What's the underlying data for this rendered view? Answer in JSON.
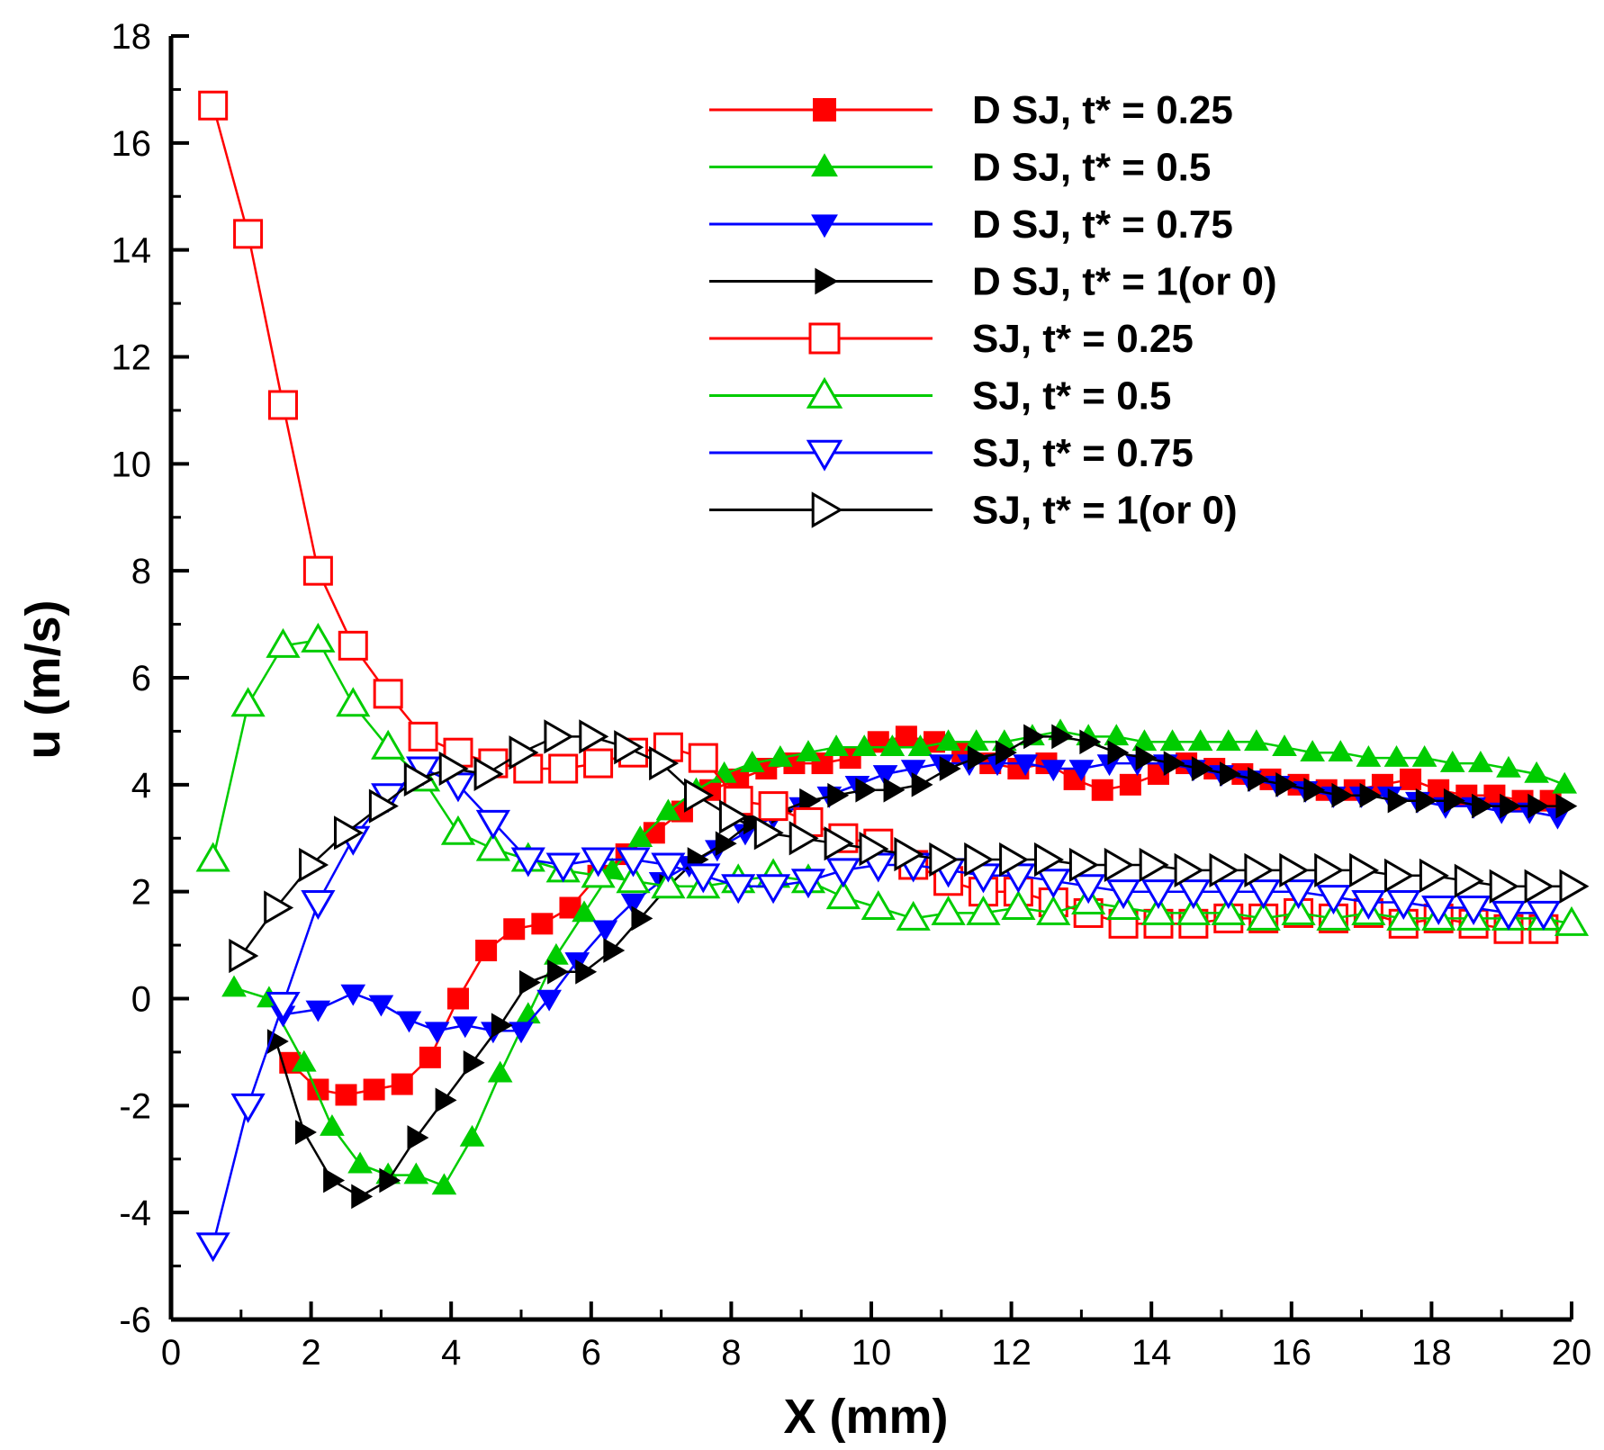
{
  "chart_data": {
    "type": "line",
    "title": "",
    "xlabel": "X (mm)",
    "ylabel": "u (m/s)",
    "xlim": [
      0,
      20
    ],
    "ylim": [
      -6,
      18
    ],
    "xticks": [
      0,
      2,
      4,
      6,
      8,
      10,
      12,
      14,
      16,
      18,
      20
    ],
    "yticks": [
      -6,
      -4,
      -2,
      0,
      2,
      4,
      6,
      8,
      10,
      12,
      14,
      16,
      18
    ],
    "grid": false,
    "legend_position": "top-right",
    "series": [
      {
        "name": "D SJ, t* = 0.25",
        "color": "#ff0000",
        "marker": "square",
        "filled": true,
        "x": [
          1.7,
          2.1,
          2.5,
          2.9,
          3.3,
          3.7,
          4.1,
          4.5,
          4.9,
          5.3,
          5.7,
          6.1,
          6.5,
          6.9,
          7.3,
          7.7,
          8.1,
          8.5,
          8.9,
          9.3,
          9.7,
          10.1,
          10.5,
          10.9,
          11.3,
          11.7,
          12.1,
          12.5,
          12.9,
          13.3,
          13.7,
          14.1,
          14.5,
          14.9,
          15.3,
          15.7,
          16.1,
          16.5,
          16.9,
          17.3,
          17.7,
          18.1,
          18.5,
          18.9,
          19.3,
          19.7
        ],
        "y": [
          -1.2,
          -1.7,
          -1.8,
          -1.7,
          -1.6,
          -1.1,
          0.0,
          0.9,
          1.3,
          1.4,
          1.7,
          2.3,
          2.7,
          3.1,
          3.5,
          3.9,
          4.1,
          4.3,
          4.4,
          4.4,
          4.5,
          4.8,
          4.9,
          4.8,
          4.6,
          4.4,
          4.3,
          4.4,
          4.1,
          3.9,
          4.0,
          4.2,
          4.4,
          4.3,
          4.2,
          4.1,
          4.0,
          3.9,
          3.9,
          4.0,
          4.1,
          3.9,
          3.8,
          3.8,
          3.7,
          3.7
        ]
      },
      {
        "name": "D SJ, t* = 0.5",
        "color": "#00cc00",
        "marker": "triangle-up",
        "filled": true,
        "x": [
          0.9,
          1.4,
          1.9,
          2.3,
          2.7,
          3.1,
          3.5,
          3.9,
          4.3,
          4.7,
          5.1,
          5.5,
          5.9,
          6.3,
          6.7,
          7.1,
          7.5,
          7.9,
          8.3,
          8.7,
          9.1,
          9.5,
          9.9,
          10.3,
          10.7,
          11.1,
          11.5,
          11.9,
          12.3,
          12.7,
          13.1,
          13.5,
          13.9,
          14.3,
          14.7,
          15.1,
          15.5,
          15.9,
          16.3,
          16.7,
          17.1,
          17.5,
          17.9,
          18.3,
          18.7,
          19.1,
          19.5,
          19.9
        ],
        "y": [
          0.2,
          0.0,
          -1.2,
          -2.4,
          -3.1,
          -3.3,
          -3.3,
          -3.5,
          -2.6,
          -1.4,
          -0.3,
          0.8,
          1.6,
          2.4,
          3.0,
          3.5,
          3.9,
          4.2,
          4.4,
          4.5,
          4.6,
          4.7,
          4.7,
          4.7,
          4.7,
          4.8,
          4.8,
          4.8,
          4.9,
          5.0,
          4.9,
          4.9,
          4.8,
          4.8,
          4.8,
          4.8,
          4.8,
          4.7,
          4.6,
          4.6,
          4.5,
          4.5,
          4.5,
          4.4,
          4.4,
          4.3,
          4.2,
          4.0
        ]
      },
      {
        "name": "D SJ, t* = 0.75",
        "color": "#0000ff",
        "marker": "triangle-down",
        "filled": true,
        "x": [
          1.6,
          2.1,
          2.6,
          3.0,
          3.4,
          3.8,
          4.2,
          4.6,
          5.0,
          5.4,
          5.8,
          6.2,
          6.6,
          7.0,
          7.4,
          7.8,
          8.2,
          8.6,
          9.0,
          9.4,
          9.8,
          10.2,
          10.6,
          11.0,
          11.4,
          11.8,
          12.2,
          12.6,
          13.0,
          13.4,
          13.8,
          14.2,
          14.6,
          15.0,
          15.4,
          15.8,
          16.2,
          16.6,
          17.0,
          17.4,
          17.8,
          18.2,
          18.6,
          19.0,
          19.4,
          19.8
        ],
        "y": [
          -0.3,
          -0.2,
          0.1,
          -0.1,
          -0.4,
          -0.6,
          -0.5,
          -0.6,
          -0.6,
          0.0,
          0.7,
          1.3,
          1.8,
          2.2,
          2.5,
          2.8,
          3.1,
          3.4,
          3.6,
          3.8,
          4.0,
          4.2,
          4.3,
          4.4,
          4.4,
          4.4,
          4.4,
          4.3,
          4.3,
          4.4,
          4.4,
          4.4,
          4.3,
          4.2,
          4.1,
          4.0,
          3.9,
          3.8,
          3.8,
          3.8,
          3.7,
          3.6,
          3.6,
          3.5,
          3.5,
          3.4
        ]
      },
      {
        "name": "D SJ, t* = 1(or 0)",
        "color": "#000000",
        "marker": "triangle-right",
        "filled": true,
        "x": [
          1.5,
          1.9,
          2.3,
          2.7,
          3.1,
          3.5,
          3.9,
          4.3,
          4.7,
          5.1,
          5.5,
          5.9,
          6.3,
          6.7,
          7.1,
          7.5,
          7.9,
          8.3,
          8.7,
          9.1,
          9.5,
          9.9,
          10.3,
          10.7,
          11.1,
          11.5,
          11.9,
          12.3,
          12.7,
          13.1,
          13.5,
          13.9,
          14.3,
          14.7,
          15.1,
          15.5,
          15.9,
          16.3,
          16.7,
          17.1,
          17.5,
          17.9,
          18.3,
          18.7,
          19.1,
          19.5,
          19.9
        ],
        "y": [
          -0.8,
          -2.5,
          -3.4,
          -3.7,
          -3.4,
          -2.6,
          -1.9,
          -1.2,
          -0.5,
          0.3,
          0.5,
          0.5,
          0.9,
          1.5,
          2.1,
          2.6,
          2.9,
          3.3,
          3.5,
          3.7,
          3.8,
          3.9,
          3.9,
          4.0,
          4.3,
          4.5,
          4.6,
          4.9,
          4.9,
          4.8,
          4.6,
          4.5,
          4.4,
          4.3,
          4.2,
          4.1,
          4.0,
          3.9,
          3.8,
          3.8,
          3.7,
          3.7,
          3.7,
          3.6,
          3.6,
          3.6,
          3.6
        ]
      },
      {
        "name": "SJ, t* = 0.25",
        "color": "#ff0000",
        "marker": "square",
        "filled": false,
        "x": [
          0.6,
          1.1,
          1.6,
          2.1,
          2.6,
          3.1,
          3.6,
          4.1,
          4.6,
          5.1,
          5.6,
          6.1,
          6.6,
          7.1,
          7.6,
          8.1,
          8.6,
          9.1,
          9.6,
          10.1,
          10.6,
          11.1,
          11.6,
          12.1,
          12.6,
          13.1,
          13.6,
          14.1,
          14.6,
          15.1,
          15.6,
          16.1,
          16.6,
          17.1,
          17.6,
          18.1,
          18.6,
          19.1,
          19.6
        ],
        "y": [
          16.7,
          14.3,
          11.1,
          8.0,
          6.6,
          5.7,
          4.9,
          4.6,
          4.4,
          4.3,
          4.3,
          4.4,
          4.6,
          4.7,
          4.5,
          3.7,
          3.6,
          3.3,
          3.0,
          2.9,
          2.5,
          2.2,
          2.0,
          2.0,
          1.8,
          1.6,
          1.4,
          1.4,
          1.4,
          1.5,
          1.5,
          1.6,
          1.5,
          1.6,
          1.4,
          1.5,
          1.4,
          1.3,
          1.3
        ]
      },
      {
        "name": "SJ, t* = 0.5",
        "color": "#00cc00",
        "marker": "triangle-up",
        "filled": false,
        "x": [
          0.6,
          1.1,
          1.6,
          2.1,
          2.6,
          3.1,
          3.6,
          4.1,
          4.6,
          5.1,
          5.6,
          6.1,
          6.6,
          7.1,
          7.6,
          8.1,
          8.6,
          9.1,
          9.6,
          10.1,
          10.6,
          11.1,
          11.6,
          12.1,
          12.6,
          13.1,
          13.6,
          14.1,
          14.6,
          15.1,
          15.6,
          16.1,
          16.6,
          17.1,
          17.6,
          18.1,
          18.6,
          19.1,
          19.6,
          20.0
        ],
        "y": [
          2.6,
          5.5,
          6.6,
          6.7,
          5.5,
          4.7,
          4.1,
          3.1,
          2.8,
          2.6,
          2.4,
          2.3,
          2.2,
          2.1,
          2.1,
          2.2,
          2.3,
          2.2,
          1.9,
          1.7,
          1.5,
          1.6,
          1.6,
          1.7,
          1.6,
          1.8,
          1.7,
          1.6,
          1.6,
          1.6,
          1.5,
          1.6,
          1.5,
          1.6,
          1.5,
          1.5,
          1.5,
          1.5,
          1.5,
          1.4
        ]
      },
      {
        "name": "SJ, t* = 0.75",
        "color": "#0000ff",
        "marker": "triangle-down",
        "filled": false,
        "x": [
          0.6,
          1.1,
          1.6,
          2.1,
          2.6,
          3.1,
          3.6,
          4.1,
          4.6,
          5.1,
          5.6,
          6.1,
          6.6,
          7.1,
          7.6,
          8.1,
          8.6,
          9.1,
          9.6,
          10.1,
          10.6,
          11.1,
          11.6,
          12.1,
          12.6,
          13.1,
          13.6,
          14.1,
          14.6,
          15.1,
          15.6,
          16.1,
          16.6,
          17.1,
          17.6,
          18.1,
          18.6,
          19.1,
          19.6
        ],
        "y": [
          -4.6,
          -2.0,
          -0.1,
          1.8,
          3.0,
          3.8,
          4.3,
          4.0,
          3.3,
          2.6,
          2.5,
          2.6,
          2.6,
          2.5,
          2.3,
          2.1,
          2.1,
          2.2,
          2.4,
          2.5,
          2.5,
          2.4,
          2.3,
          2.3,
          2.2,
          2.1,
          2.0,
          2.0,
          2.0,
          2.0,
          2.0,
          2.0,
          1.9,
          1.8,
          1.8,
          1.7,
          1.7,
          1.6,
          1.6
        ]
      },
      {
        "name": "SJ, t* = 1(or 0)",
        "color": "#000000",
        "marker": "triangle-right",
        "filled": false,
        "x": [
          1.0,
          1.5,
          2.0,
          2.5,
          3.0,
          3.5,
          4.0,
          4.5,
          5.0,
          5.5,
          6.0,
          6.5,
          7.0,
          7.5,
          8.0,
          8.5,
          9.0,
          9.5,
          10.0,
          10.5,
          11.0,
          11.5,
          12.0,
          12.5,
          13.0,
          13.5,
          14.0,
          14.5,
          15.0,
          15.5,
          16.0,
          16.5,
          17.0,
          17.5,
          18.0,
          18.5,
          19.0,
          19.5,
          20.0
        ],
        "y": [
          0.8,
          1.7,
          2.5,
          3.1,
          3.6,
          4.1,
          4.3,
          4.2,
          4.6,
          4.9,
          4.9,
          4.7,
          4.4,
          3.8,
          3.4,
          3.1,
          3.0,
          2.9,
          2.8,
          2.7,
          2.6,
          2.6,
          2.6,
          2.6,
          2.5,
          2.5,
          2.5,
          2.4,
          2.4,
          2.4,
          2.4,
          2.4,
          2.4,
          2.3,
          2.3,
          2.2,
          2.1,
          2.1,
          2.1
        ]
      }
    ]
  }
}
